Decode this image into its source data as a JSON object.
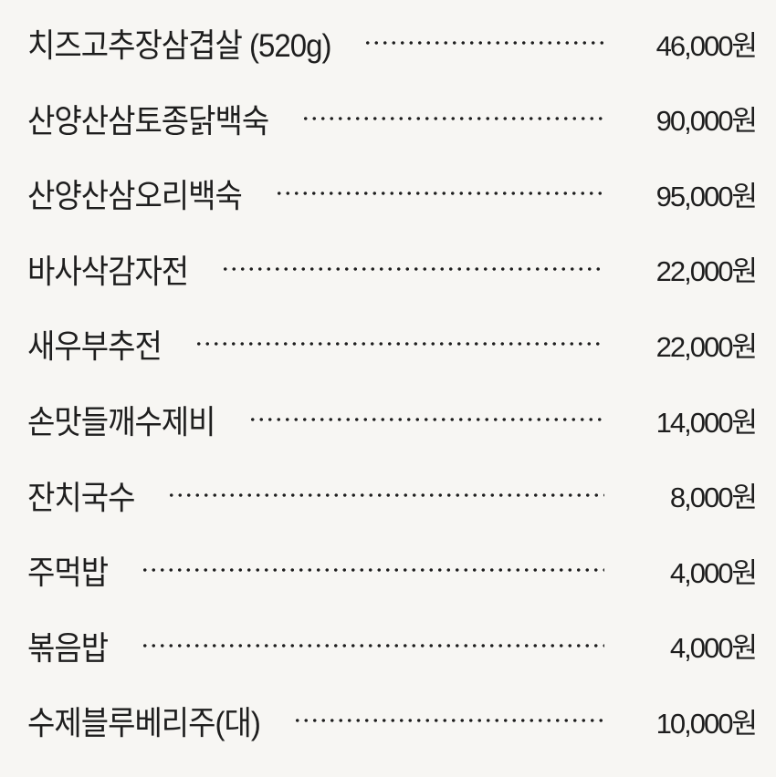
{
  "menu": {
    "items": [
      {
        "name": "치즈고추장삼겹살 (520g)",
        "price": "46,000원"
      },
      {
        "name": "산양산삼토종닭백숙",
        "price": "90,000원"
      },
      {
        "name": "산양산삼오리백숙",
        "price": "95,000원"
      },
      {
        "name": "바사삭감자전",
        "price": "22,000원"
      },
      {
        "name": "새우부추전",
        "price": "22,000원"
      },
      {
        "name": "손맛들깨수제비",
        "price": "14,000원"
      },
      {
        "name": "잔치국수",
        "price": "8,000원"
      },
      {
        "name": "주먹밥",
        "price": "4,000원"
      },
      {
        "name": "볶음밥",
        "price": "4,000원"
      },
      {
        "name": "수제블루베리주(대)",
        "price": "10,000원"
      }
    ]
  }
}
